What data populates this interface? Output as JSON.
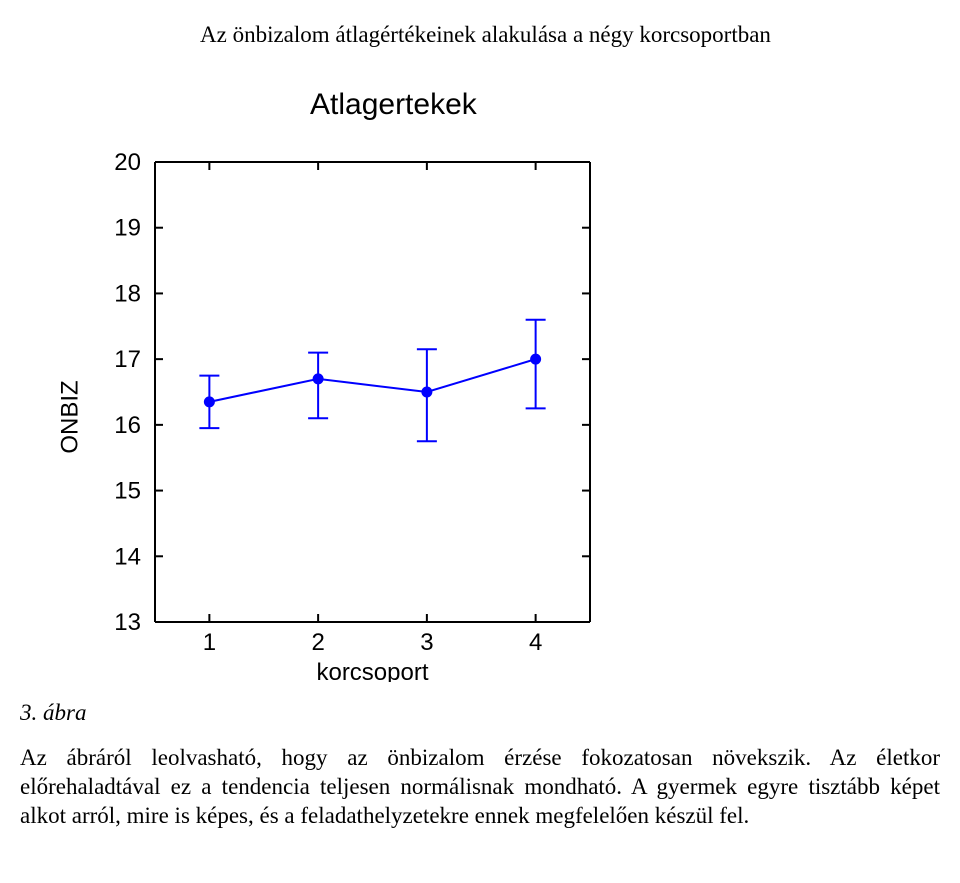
{
  "title": "Az önbizalom átlagértékeinek alakulása a négy korcsoportban",
  "chart": {
    "type": "line-errorbar",
    "chart_title": "Atlagertekek",
    "ylabel": "ONBIZ",
    "xlabel": "korcsoport",
    "x_categories": [
      "1",
      "2",
      "3",
      "4"
    ],
    "y_ticks": [
      13,
      14,
      15,
      16,
      17,
      18,
      19,
      20
    ],
    "ylim": [
      13,
      20
    ],
    "xlim": [
      0.5,
      4.5
    ],
    "points": [
      {
        "x": 1,
        "y": 16.35,
        "err_low": 15.95,
        "err_high": 16.75
      },
      {
        "x": 2,
        "y": 16.7,
        "err_low": 16.1,
        "err_high": 17.1
      },
      {
        "x": 3,
        "y": 16.5,
        "err_low": 15.75,
        "err_high": 17.15
      },
      {
        "x": 4,
        "y": 17.0,
        "err_low": 16.25,
        "err_high": 17.6
      }
    ],
    "line_color": "#0000ff",
    "marker_fill": "#0000ff",
    "marker_radius": 5,
    "line_width": 2,
    "errorbar_width": 2,
    "errorbar_cap": 10,
    "axis_color": "#000000",
    "axis_width": 2,
    "tick_len_major": 8,
    "background_color": "#ffffff",
    "tick_font_size": 24,
    "label_font_size": 24,
    "title_font_size": 30
  },
  "caption": "3. ábra",
  "body": "Az ábráról leolvasható, hogy az önbizalom érzése fokozatosan növekszik. Az életkor előrehaladtával ez a tendencia teljesen normálisnak mondható. A gyermek egyre tisztább képet alkot arról, mire is képes, és a feladathelyzetekre ennek megfelelően készül fel."
}
